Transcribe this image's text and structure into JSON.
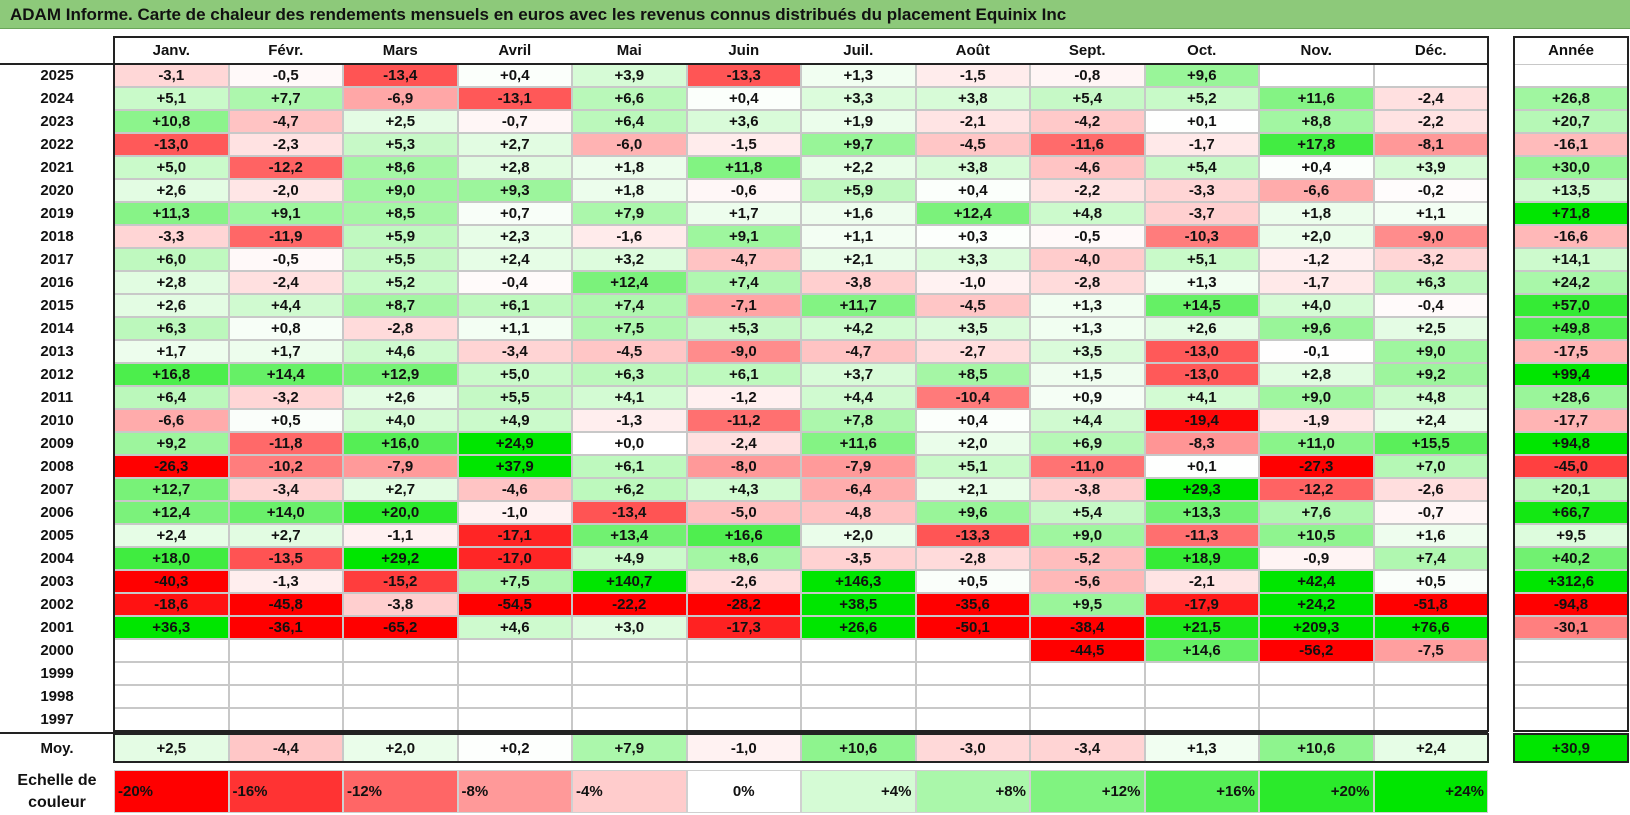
{
  "title": "ADAM Informe. Carte de chaleur des rendements mensuels en euros avec les revenus connus distribués du placement Equinix Inc",
  "chart_data": {
    "type": "heatmap",
    "months": [
      "Janv.",
      "Févr.",
      "Mars",
      "Avril",
      "Mai",
      "Juin",
      "Juil.",
      "Août",
      "Sept.",
      "Oct.",
      "Nov.",
      "Déc."
    ],
    "annual_header": "Année",
    "rows": [
      {
        "year": "2025",
        "values": [
          "-3,1",
          "-0,5",
          "-13,4",
          "+0,4",
          "+3,9",
          "-13,3",
          "+1,3",
          "-1,5",
          "-0,8",
          "+9,6",
          "",
          ""
        ],
        "annual": ""
      },
      {
        "year": "2024",
        "values": [
          "+5,1",
          "+7,7",
          "-6,9",
          "-13,1",
          "+6,6",
          "+0,4",
          "+3,3",
          "+3,8",
          "+5,4",
          "+5,2",
          "+11,6",
          "-2,4"
        ],
        "annual": "+26,8"
      },
      {
        "year": "2023",
        "values": [
          "+10,8",
          "-4,7",
          "+2,5",
          "-0,7",
          "+6,4",
          "+3,6",
          "+1,9",
          "-2,1",
          "-4,2",
          "+0,1",
          "+8,8",
          "-2,2"
        ],
        "annual": "+20,7"
      },
      {
        "year": "2022",
        "values": [
          "-13,0",
          "-2,3",
          "+5,3",
          "+2,7",
          "-6,0",
          "-1,5",
          "+9,7",
          "-4,5",
          "-11,6",
          "-1,7",
          "+17,8",
          "-8,1"
        ],
        "annual": "-16,1"
      },
      {
        "year": "2021",
        "values": [
          "+5,0",
          "-12,2",
          "+8,6",
          "+2,8",
          "+1,8",
          "+11,8",
          "+2,2",
          "+3,8",
          "-4,6",
          "+5,4",
          "+0,4",
          "+3,9"
        ],
        "annual": "+30,0"
      },
      {
        "year": "2020",
        "values": [
          "+2,6",
          "-2,0",
          "+9,0",
          "+9,3",
          "+1,8",
          "-0,6",
          "+5,9",
          "+0,4",
          "-2,2",
          "-3,3",
          "-6,6",
          "-0,2"
        ],
        "annual": "+13,5"
      },
      {
        "year": "2019",
        "values": [
          "+11,3",
          "+9,1",
          "+8,5",
          "+0,7",
          "+7,9",
          "+1,7",
          "+1,6",
          "+12,4",
          "+4,8",
          "-3,7",
          "+1,8",
          "+1,1"
        ],
        "annual": "+71,8"
      },
      {
        "year": "2018",
        "values": [
          "-3,3",
          "-11,9",
          "+5,9",
          "+2,3",
          "-1,6",
          "+9,1",
          "+1,1",
          "+0,3",
          "-0,5",
          "-10,3",
          "+2,0",
          "-9,0"
        ],
        "annual": "-16,6"
      },
      {
        "year": "2017",
        "values": [
          "+6,0",
          "-0,5",
          "+5,5",
          "+2,4",
          "+3,2",
          "-4,7",
          "+2,1",
          "+3,3",
          "-4,0",
          "+5,1",
          "-1,2",
          "-3,2"
        ],
        "annual": "+14,1"
      },
      {
        "year": "2016",
        "values": [
          "+2,8",
          "-2,4",
          "+5,2",
          "-0,4",
          "+12,4",
          "+7,4",
          "-3,8",
          "-1,0",
          "-2,8",
          "+1,3",
          "-1,7",
          "+6,3"
        ],
        "annual": "+24,2"
      },
      {
        "year": "2015",
        "values": [
          "+2,6",
          "+4,4",
          "+8,7",
          "+6,1",
          "+7,4",
          "-7,1",
          "+11,7",
          "-4,5",
          "+1,3",
          "+14,5",
          "+4,0",
          "-0,4"
        ],
        "annual": "+57,0"
      },
      {
        "year": "2014",
        "values": [
          "+6,3",
          "+0,8",
          "-2,8",
          "+1,1",
          "+7,5",
          "+5,3",
          "+4,2",
          "+3,5",
          "+1,3",
          "+2,6",
          "+9,6",
          "+2,5"
        ],
        "annual": "+49,8"
      },
      {
        "year": "2013",
        "values": [
          "+1,7",
          "+1,7",
          "+4,6",
          "-3,4",
          "-4,5",
          "-9,0",
          "-4,7",
          "-2,7",
          "+3,5",
          "-13,0",
          "-0,1",
          "+9,0"
        ],
        "annual": "-17,5"
      },
      {
        "year": "2012",
        "values": [
          "+16,8",
          "+14,4",
          "+12,9",
          "+5,0",
          "+6,3",
          "+6,1",
          "+3,7",
          "+8,5",
          "+1,5",
          "-13,0",
          "+2,8",
          "+9,2"
        ],
        "annual": "+99,4"
      },
      {
        "year": "2011",
        "values": [
          "+6,4",
          "-3,2",
          "+2,6",
          "+5,5",
          "+4,1",
          "-1,2",
          "+4,4",
          "-10,4",
          "+0,9",
          "+4,1",
          "+9,0",
          "+4,8"
        ],
        "annual": "+28,6"
      },
      {
        "year": "2010",
        "values": [
          "-6,6",
          "+0,5",
          "+4,0",
          "+4,9",
          "-1,3",
          "-11,2",
          "+7,8",
          "+0,4",
          "+4,4",
          "-19,4",
          "-1,9",
          "+2,4"
        ],
        "annual": "-17,7"
      },
      {
        "year": "2009",
        "values": [
          "+9,2",
          "-11,8",
          "+16,0",
          "+24,9",
          "+0,0",
          "-2,4",
          "+11,6",
          "+2,0",
          "+6,9",
          "-8,3",
          "+11,0",
          "+15,5"
        ],
        "annual": "+94,8"
      },
      {
        "year": "2008",
        "values": [
          "-26,3",
          "-10,2",
          "-7,9",
          "+37,9",
          "+6,1",
          "-8,0",
          "-7,9",
          "+5,1",
          "-11,0",
          "+0,1",
          "-27,3",
          "+7,0"
        ],
        "annual": "-45,0"
      },
      {
        "year": "2007",
        "values": [
          "+12,7",
          "-3,4",
          "+2,7",
          "-4,6",
          "+6,2",
          "+4,3",
          "-6,4",
          "+2,1",
          "-3,8",
          "+29,3",
          "-12,2",
          "-2,6"
        ],
        "annual": "+20,1"
      },
      {
        "year": "2006",
        "values": [
          "+12,4",
          "+14,0",
          "+20,0",
          "-1,0",
          "-13,4",
          "-5,0",
          "-4,8",
          "+9,6",
          "+5,4",
          "+13,3",
          "+7,6",
          "-0,7"
        ],
        "annual": "+66,7"
      },
      {
        "year": "2005",
        "values": [
          "+2,4",
          "+2,7",
          "-1,1",
          "-17,1",
          "+13,4",
          "+16,6",
          "+2,0",
          "-13,3",
          "+9,0",
          "-11,3",
          "+10,5",
          "+1,6"
        ],
        "annual": "+9,5"
      },
      {
        "year": "2004",
        "values": [
          "+18,0",
          "-13,5",
          "+29,2",
          "-17,0",
          "+4,9",
          "+8,6",
          "-3,5",
          "-2,8",
          "-5,2",
          "+18,9",
          "-0,9",
          "+7,4"
        ],
        "annual": "+40,2"
      },
      {
        "year": "2003",
        "values": [
          "-40,3",
          "-1,3",
          "-15,2",
          "+7,5",
          "+140,7",
          "-2,6",
          "+146,3",
          "+0,5",
          "-5,6",
          "-2,1",
          "+42,4",
          "+0,5"
        ],
        "annual": "+312,6"
      },
      {
        "year": "2002",
        "values": [
          "-18,6",
          "-45,8",
          "-3,8",
          "-54,5",
          "-22,2",
          "-28,2",
          "+38,5",
          "-35,6",
          "+9,5",
          "-17,9",
          "+24,2",
          "-51,8"
        ],
        "annual": "-94,8"
      },
      {
        "year": "2001",
        "values": [
          "+36,3",
          "-36,1",
          "-65,2",
          "+4,6",
          "+3,0",
          "-17,3",
          "+26,6",
          "-50,1",
          "-38,4",
          "+21,5",
          "+209,3",
          "+76,6"
        ],
        "annual": "-30,1"
      },
      {
        "year": "2000",
        "values": [
          "",
          "",
          "",
          "",
          "",
          "",
          "",
          "",
          "-44,5",
          "+14,6",
          "-56,2",
          "-7,5"
        ],
        "annual": ""
      },
      {
        "year": "1999",
        "values": [
          "",
          "",
          "",
          "",
          "",
          "",
          "",
          "",
          "",
          "",
          "",
          ""
        ],
        "annual": ""
      },
      {
        "year": "1998",
        "values": [
          "",
          "",
          "",
          "",
          "",
          "",
          "",
          "",
          "",
          "",
          "",
          ""
        ],
        "annual": ""
      },
      {
        "year": "1997",
        "values": [
          "",
          "",
          "",
          "",
          "",
          "",
          "",
          "",
          "",
          "",
          "",
          ""
        ],
        "annual": ""
      }
    ],
    "average": {
      "label": "Moy.",
      "values": [
        "+2,5",
        "-4,4",
        "+2,0",
        "+0,2",
        "+7,9",
        "-1,0",
        "+10,6",
        "-3,0",
        "-3,4",
        "+1,3",
        "+10,6",
        "+2,4"
      ],
      "annual": "+30,9"
    },
    "scale": {
      "label": "Echelle de couleur",
      "stops": [
        "-20%",
        "-16%",
        "-12%",
        "-8%",
        "-4%",
        "0%",
        "+4%",
        "+8%",
        "+12%",
        "+16%",
        "+20%",
        "+24%"
      ],
      "stop_values": [
        -20,
        -16,
        -12,
        -8,
        -4,
        0,
        4,
        8,
        12,
        16,
        20,
        24
      ]
    },
    "colors": {
      "negative_max": "#ff0000",
      "neutral": "#ffffff",
      "positive_max": "#00e600",
      "title_band": "#8dc97a"
    }
  }
}
